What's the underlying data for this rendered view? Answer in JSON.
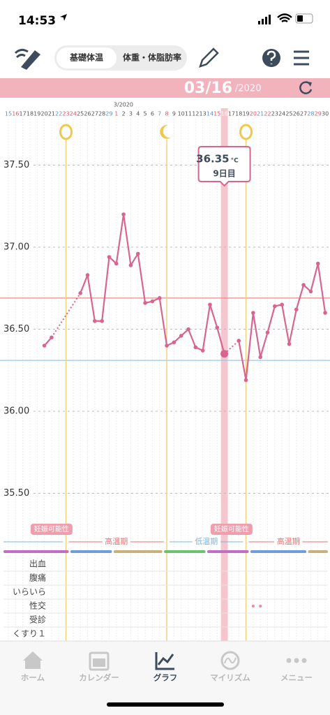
{
  "status_bar": {
    "time": "14:53"
  },
  "toolbar": {
    "tabs": [
      "基礎体温",
      "体重・体脂肪率"
    ]
  },
  "date_header": {
    "date": "03/16",
    "year": "/2020"
  },
  "chart_data": {
    "type": "line",
    "month_label": "3/2020",
    "categories": [
      "15",
      "16",
      "17",
      "18",
      "19",
      "20",
      "21",
      "22",
      "23",
      "24",
      "25",
      "26",
      "27",
      "28",
      "29",
      "1",
      "2",
      "3",
      "4",
      "5",
      "6",
      "7",
      "8",
      "9",
      "10",
      "11",
      "12",
      "13",
      "14",
      "15",
      "16",
      "17",
      "18",
      "19",
      "20",
      "21",
      "22",
      "23",
      "24",
      "25",
      "26",
      "27",
      "28",
      "29",
      "30"
    ],
    "tick_colors": [
      "#5b8fd6",
      "#e0556a",
      "#555",
      "#555",
      "#555",
      "#555",
      "#555",
      "#5b8fd6",
      "#e0556a",
      "#e0556a",
      "#555",
      "#555",
      "#555",
      "#555",
      "#5b8fd6",
      "#e0556a",
      "#555",
      "#555",
      "#555",
      "#555",
      "#555",
      "#5b8fd6",
      "#e0556a",
      "#555",
      "#555",
      "#555",
      "#555",
      "#555",
      "#5b8fd6",
      "#e0556a",
      "#ffffff",
      "#555",
      "#555",
      "#555",
      "#e0556a",
      "#5b8fd6",
      "#e0556a",
      "#555",
      "#555",
      "#555",
      "#555",
      "#555",
      "#5b8fd6",
      "#e0556a",
      "#555"
    ],
    "series": [
      {
        "color": "#d9648f",
        "values": [
          null,
          null,
          null,
          null,
          null,
          36.4,
          36.45,
          null,
          null,
          null,
          36.72,
          36.83,
          36.55,
          36.55,
          36.94,
          36.9,
          37.2,
          36.89,
          36.96,
          36.66,
          36.67,
          36.69,
          36.4,
          36.42,
          36.46,
          36.5,
          36.39,
          36.37,
          36.65,
          36.51,
          36.35,
          null,
          36.43,
          36.19,
          36.6,
          36.33,
          36.48,
          36.64,
          36.65,
          36.41,
          36.62,
          36.77,
          36.73,
          36.9,
          36.6
        ]
      }
    ],
    "ylim": [
      35.2,
      37.8
    ],
    "yticks": [
      {
        "value": 35.5,
        "label": "35.50"
      },
      {
        "value": 36,
        "label": "36.00"
      },
      {
        "value": 36.5,
        "label": "36.50"
      },
      {
        "value": 37,
        "label": "37.00"
      },
      {
        "value": 37.5,
        "label": "37.50"
      }
    ],
    "grid": true,
    "reference_lines": [
      {
        "value": 36.69,
        "color": "#e88a8a"
      },
      {
        "value": 36.31,
        "color": "#9cc8e8"
      }
    ],
    "selected_index": 30,
    "tooltip": {
      "value_label": "36.35",
      "unit": "°C",
      "day_label": "9日目"
    },
    "markers": [
      {
        "index": 8,
        "icon": "egg"
      },
      {
        "index": 22,
        "icon": "moon"
      },
      {
        "index": 33,
        "icon": "egg"
      }
    ],
    "fertile_labels": [
      {
        "index": 6,
        "text": "妊娠可能性"
      },
      {
        "index": 31,
        "text": "妊娠可能性"
      }
    ],
    "phases": [
      {
        "start": 0,
        "end": 8,
        "color": "#7fb3e0"
      },
      {
        "text": "高温期",
        "start": 8,
        "end": 22,
        "color": "#e57373"
      },
      {
        "text": "低温期",
        "start": 22,
        "end": 33,
        "color": "#7fb3e0"
      },
      {
        "text": "高温期",
        "start": 33,
        "end": 44,
        "color": "#e57373"
      }
    ],
    "cycle_bar": [
      {
        "start": 0,
        "end": 8,
        "color": "#c06fc4"
      },
      {
        "start": 9,
        "end": 14,
        "color": "#6f9de0"
      },
      {
        "start": 15,
        "end": 21,
        "color": "#c9b27a"
      },
      {
        "start": 22,
        "end": 27,
        "color": "#6cc36f"
      },
      {
        "start": 28,
        "end": 33,
        "color": "#c06fc4"
      },
      {
        "start": 34,
        "end": 41,
        "color": "#6f9de0"
      },
      {
        "start": 42,
        "end": 44,
        "color": "#c9b27a"
      }
    ]
  },
  "symptoms": {
    "rows": [
      "出血",
      "腹痛",
      "いらいら",
      "性交",
      "受診",
      "くすり１"
    ],
    "dots": [
      {
        "row": 3,
        "index": 34
      },
      {
        "row": 3,
        "index": 35
      }
    ]
  },
  "nav": {
    "items": [
      {
        "label": "ホーム"
      },
      {
        "label": "カレンダー"
      },
      {
        "label": "グラフ"
      },
      {
        "label": "マイリズム"
      },
      {
        "label": "メニュー"
      }
    ],
    "active": 2
  }
}
